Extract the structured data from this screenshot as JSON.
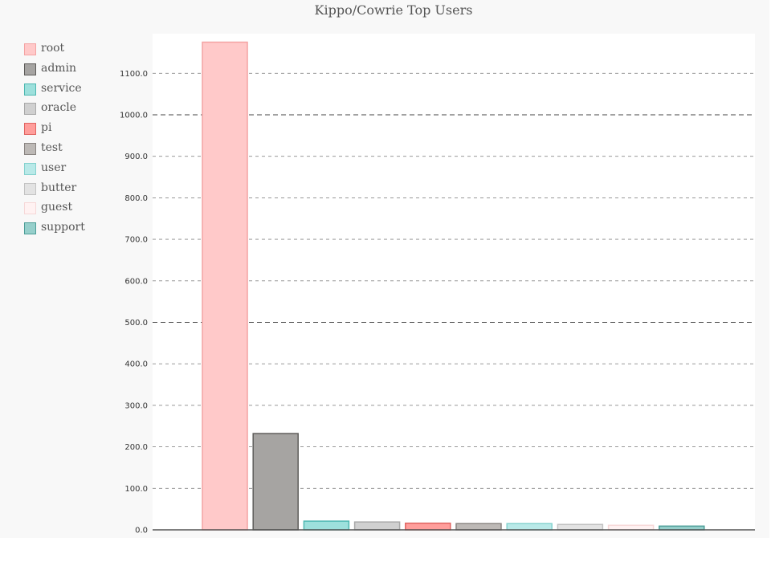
{
  "chart_data": {
    "type": "bar",
    "title": "Kippo/Cowrie Top Users",
    "xlabel": "",
    "ylabel": "",
    "categories": [
      "root",
      "admin",
      "service",
      "oracle",
      "pi",
      "test",
      "user",
      "butter",
      "guest",
      "support"
    ],
    "values": [
      1175,
      232,
      21,
      19,
      16,
      15,
      15,
      13,
      11,
      9
    ],
    "ylim": [
      0,
      1175
    ],
    "yticks": [
      "0.0",
      "100.0",
      "200.0",
      "300.0",
      "400.0",
      "500.0",
      "600.0",
      "700.0",
      "800.0",
      "900.0",
      "1000.0",
      "1100.0"
    ],
    "ytick_values": [
      0,
      100,
      200,
      300,
      400,
      500,
      600,
      700,
      800,
      900,
      1000,
      1100
    ],
    "major_gridlines": [
      500,
      1000
    ],
    "legend_position": "left",
    "grid": true,
    "series_colors": [
      {
        "fill": "#ffc9c9",
        "stroke": "#f4a3a3"
      },
      {
        "fill": "#a6a4a2",
        "stroke": "#5e5c5a"
      },
      {
        "fill": "#9de0dc",
        "stroke": "#4fb8b1"
      },
      {
        "fill": "#d0d0d0",
        "stroke": "#a9a9a9"
      },
      {
        "fill": "#ff9e9b",
        "stroke": "#e06562"
      },
      {
        "fill": "#bdb9b6",
        "stroke": "#8a8582"
      },
      {
        "fill": "#b9e9e8",
        "stroke": "#86d2cf"
      },
      {
        "fill": "#e3e3e3",
        "stroke": "#c3c3c3"
      },
      {
        "fill": "#fff2f2",
        "stroke": "#f6d8d8"
      },
      {
        "fill": "#96cfcb",
        "stroke": "#4d9e98"
      }
    ]
  }
}
